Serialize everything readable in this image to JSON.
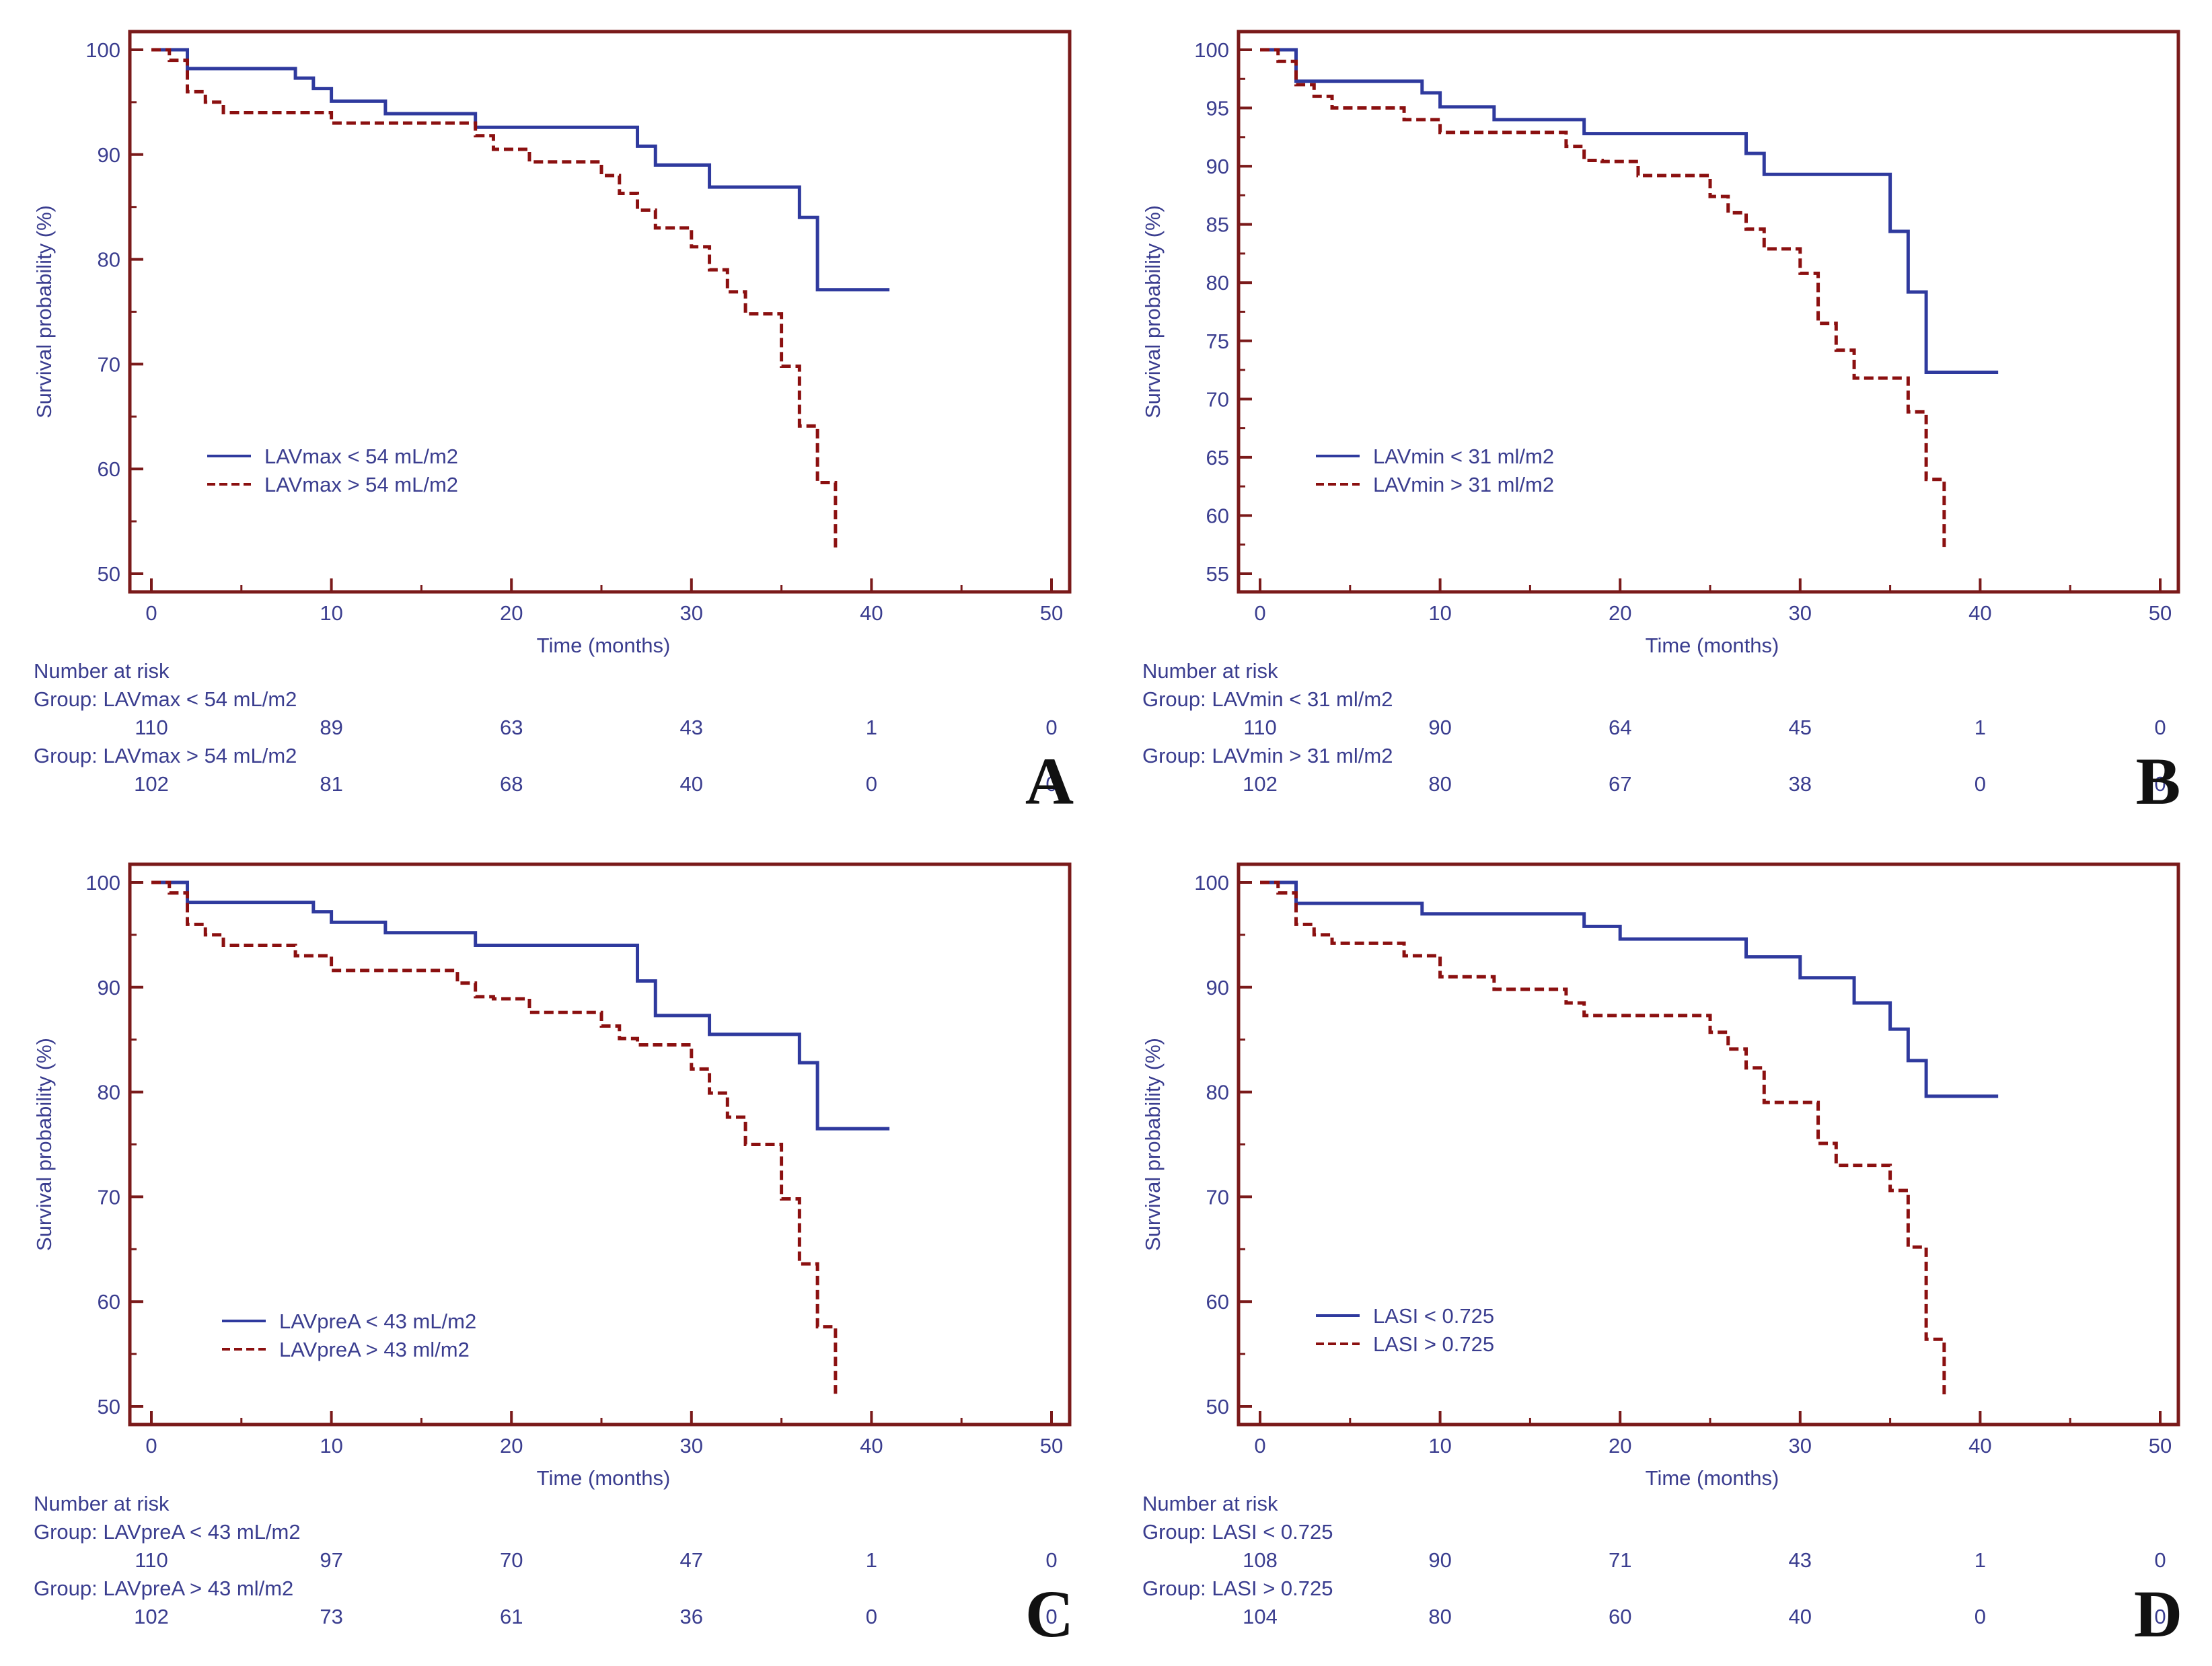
{
  "colors": {
    "axes": "#7a1a1a",
    "text": "#3a3d8f",
    "low_group": "#2f3a9e",
    "high_group": "#8b1010"
  },
  "chart_data": [
    {
      "panel": "A",
      "type": "line",
      "chart_kind": "kaplan-meier",
      "xlabel": "Time (months)",
      "ylabel": "Survival probability (%)",
      "xlim": [
        0,
        50
      ],
      "ylim": [
        50,
        100
      ],
      "xticks": [
        0,
        10,
        20,
        30,
        40,
        50
      ],
      "yticks": [
        50,
        60,
        70,
        80,
        90,
        100
      ],
      "legend_position": "lower-left",
      "series": [
        {
          "name": "LAVmax < 54 mL/m2",
          "style": "solid",
          "x": [
            0,
            2,
            8,
            9,
            10,
            13,
            18,
            27,
            28,
            31,
            36,
            37,
            41
          ],
          "y": [
            100,
            98.2,
            97.3,
            96.3,
            95.1,
            93.9,
            92.6,
            90.8,
            89,
            86.9,
            84,
            77.1,
            77.1
          ]
        },
        {
          "name": "LAVmax > 54 mL/m2",
          "style": "dashed",
          "x": [
            0,
            1,
            2,
            3,
            4,
            10,
            18,
            19,
            21,
            25,
            26,
            27,
            28,
            30,
            31,
            32,
            33,
            35,
            36,
            37,
            38
          ],
          "y": [
            100,
            99,
            96,
            95,
            94,
            93,
            91.8,
            90.5,
            89.3,
            88,
            86.3,
            84.7,
            83,
            81.2,
            79,
            76.9,
            74.8,
            69.8,
            64.1,
            58.7,
            52.5
          ]
        }
      ],
      "risk_table": {
        "title": "Number at risk",
        "rows": [
          {
            "group": "Group: LAVmax < 54 mL/m2",
            "counts": [
              "110",
              "89",
              "63",
              "43",
              "1",
              "0"
            ]
          },
          {
            "group": "Group: LAVmax > 54 mL/m2",
            "counts": [
              "102",
              "81",
              "68",
              "40",
              "0",
              "0"
            ]
          }
        ]
      }
    },
    {
      "panel": "B",
      "type": "line",
      "chart_kind": "kaplan-meier",
      "xlabel": "Time (months)",
      "ylabel": "Survival probability (%)",
      "xlim": [
        0,
        50
      ],
      "ylim": [
        55,
        100
      ],
      "xticks": [
        0,
        10,
        20,
        30,
        40,
        50
      ],
      "yticks": [
        55,
        60,
        65,
        70,
        75,
        80,
        85,
        90,
        95,
        100
      ],
      "legend_position": "lower-left",
      "series": [
        {
          "name": "LAVmin < 31 ml/m2",
          "style": "solid",
          "x": [
            0,
            2,
            9,
            10,
            13,
            18,
            27,
            28,
            35,
            36,
            37,
            41
          ],
          "y": [
            100,
            97.3,
            96.3,
            95.1,
            94,
            92.8,
            91.1,
            89.3,
            84.4,
            79.2,
            72.3,
            72.3
          ]
        },
        {
          "name": "LAVmin > 31 ml/m2",
          "style": "dashed",
          "x": [
            0,
            1,
            2,
            3,
            4,
            8,
            10,
            17,
            18,
            19,
            21,
            25,
            26,
            27,
            28,
            30,
            31,
            32,
            33,
            36,
            37,
            38
          ],
          "y": [
            100,
            99,
            97,
            96,
            95,
            94,
            92.9,
            91.7,
            90.5,
            90.4,
            89.2,
            87.4,
            86,
            84.6,
            82.9,
            80.8,
            76.5,
            74.2,
            71.8,
            68.9,
            63.1,
            57.3
          ]
        }
      ],
      "risk_table": {
        "title": "Number at risk",
        "rows": [
          {
            "group": "Group: LAVmin < 31 ml/m2",
            "counts": [
              "110",
              "90",
              "64",
              "45",
              "1",
              "0"
            ]
          },
          {
            "group": "Group: LAVmin > 31 ml/m2",
            "counts": [
              "102",
              "80",
              "67",
              "38",
              "0",
              "0"
            ]
          }
        ]
      }
    },
    {
      "panel": "C",
      "type": "line",
      "chart_kind": "kaplan-meier",
      "xlabel": "Time (months)",
      "ylabel": "Survival probability (%)",
      "xlim": [
        0,
        50
      ],
      "ylim": [
        50,
        100
      ],
      "xticks": [
        0,
        10,
        20,
        30,
        40,
        50
      ],
      "yticks": [
        50,
        60,
        70,
        80,
        90,
        100
      ],
      "legend_position": "lower-left",
      "series": [
        {
          "name": "LAVpreA < 43 mL/m2",
          "style": "solid",
          "x": [
            0,
            2,
            9,
            10,
            13,
            18,
            27,
            28,
            31,
            36,
            37,
            41
          ],
          "y": [
            100,
            98.1,
            97.2,
            96.2,
            95.2,
            94,
            90.6,
            87.3,
            85.5,
            82.8,
            76.5,
            76.5
          ]
        },
        {
          "name": "LAVpreA > 43 ml/m2",
          "style": "dashed",
          "x": [
            0,
            1,
            2,
            3,
            4,
            8,
            10,
            17,
            18,
            19,
            21,
            25,
            26,
            27,
            30,
            31,
            32,
            33,
            35,
            36,
            37,
            38
          ],
          "y": [
            100,
            99,
            96,
            95,
            94,
            93,
            91.6,
            90.4,
            89.1,
            88.9,
            87.6,
            86.3,
            85.1,
            84.5,
            82.2,
            79.9,
            77.6,
            75,
            69.8,
            63.6,
            57.6,
            51.2
          ]
        }
      ],
      "risk_table": {
        "title": "Number at risk",
        "rows": [
          {
            "group": "Group: LAVpreA < 43 mL/m2",
            "counts": [
              "110",
              "97",
              "70",
              "47",
              "1",
              "0"
            ]
          },
          {
            "group": "Group: LAVpreA > 43 ml/m2",
            "counts": [
              "102",
              "73",
              "61",
              "36",
              "0",
              "0"
            ]
          }
        ]
      }
    },
    {
      "panel": "D",
      "type": "line",
      "chart_kind": "kaplan-meier",
      "xlabel": "Time (months)",
      "ylabel": "Survival probability (%)",
      "xlim": [
        0,
        50
      ],
      "ylim": [
        50,
        100
      ],
      "xticks": [
        0,
        10,
        20,
        30,
        40,
        50
      ],
      "yticks": [
        50,
        60,
        70,
        80,
        90,
        100
      ],
      "legend_position": "lower-left",
      "series": [
        {
          "name": "LASI < 0.725",
          "style": "solid",
          "x": [
            0,
            2,
            9,
            18,
            20,
            27,
            30,
            33,
            35,
            36,
            37,
            41
          ],
          "y": [
            100,
            98,
            97,
            95.8,
            94.6,
            92.9,
            90.9,
            88.5,
            86,
            83,
            79.6,
            79.6
          ]
        },
        {
          "name": "LASI > 0.725",
          "style": "dashed",
          "x": [
            0,
            1,
            2,
            3,
            4,
            8,
            10,
            13,
            17,
            18,
            25,
            26,
            27,
            28,
            31,
            32,
            35,
            36,
            37,
            38
          ],
          "y": [
            100,
            99,
            96,
            95,
            94.2,
            93,
            91,
            89.8,
            88.5,
            87.3,
            85.7,
            84.1,
            82.3,
            79,
            75.1,
            73,
            70.6,
            65.2,
            56.4,
            50.8
          ]
        }
      ],
      "risk_table": {
        "title": "Number at risk",
        "rows": [
          {
            "group": "Group: LASI < 0.725",
            "counts": [
              "108",
              "90",
              "71",
              "43",
              "1",
              "0"
            ]
          },
          {
            "group": "Group: LASI > 0.725",
            "counts": [
              "104",
              "80",
              "60",
              "40",
              "0",
              "0"
            ]
          }
        ]
      }
    }
  ]
}
